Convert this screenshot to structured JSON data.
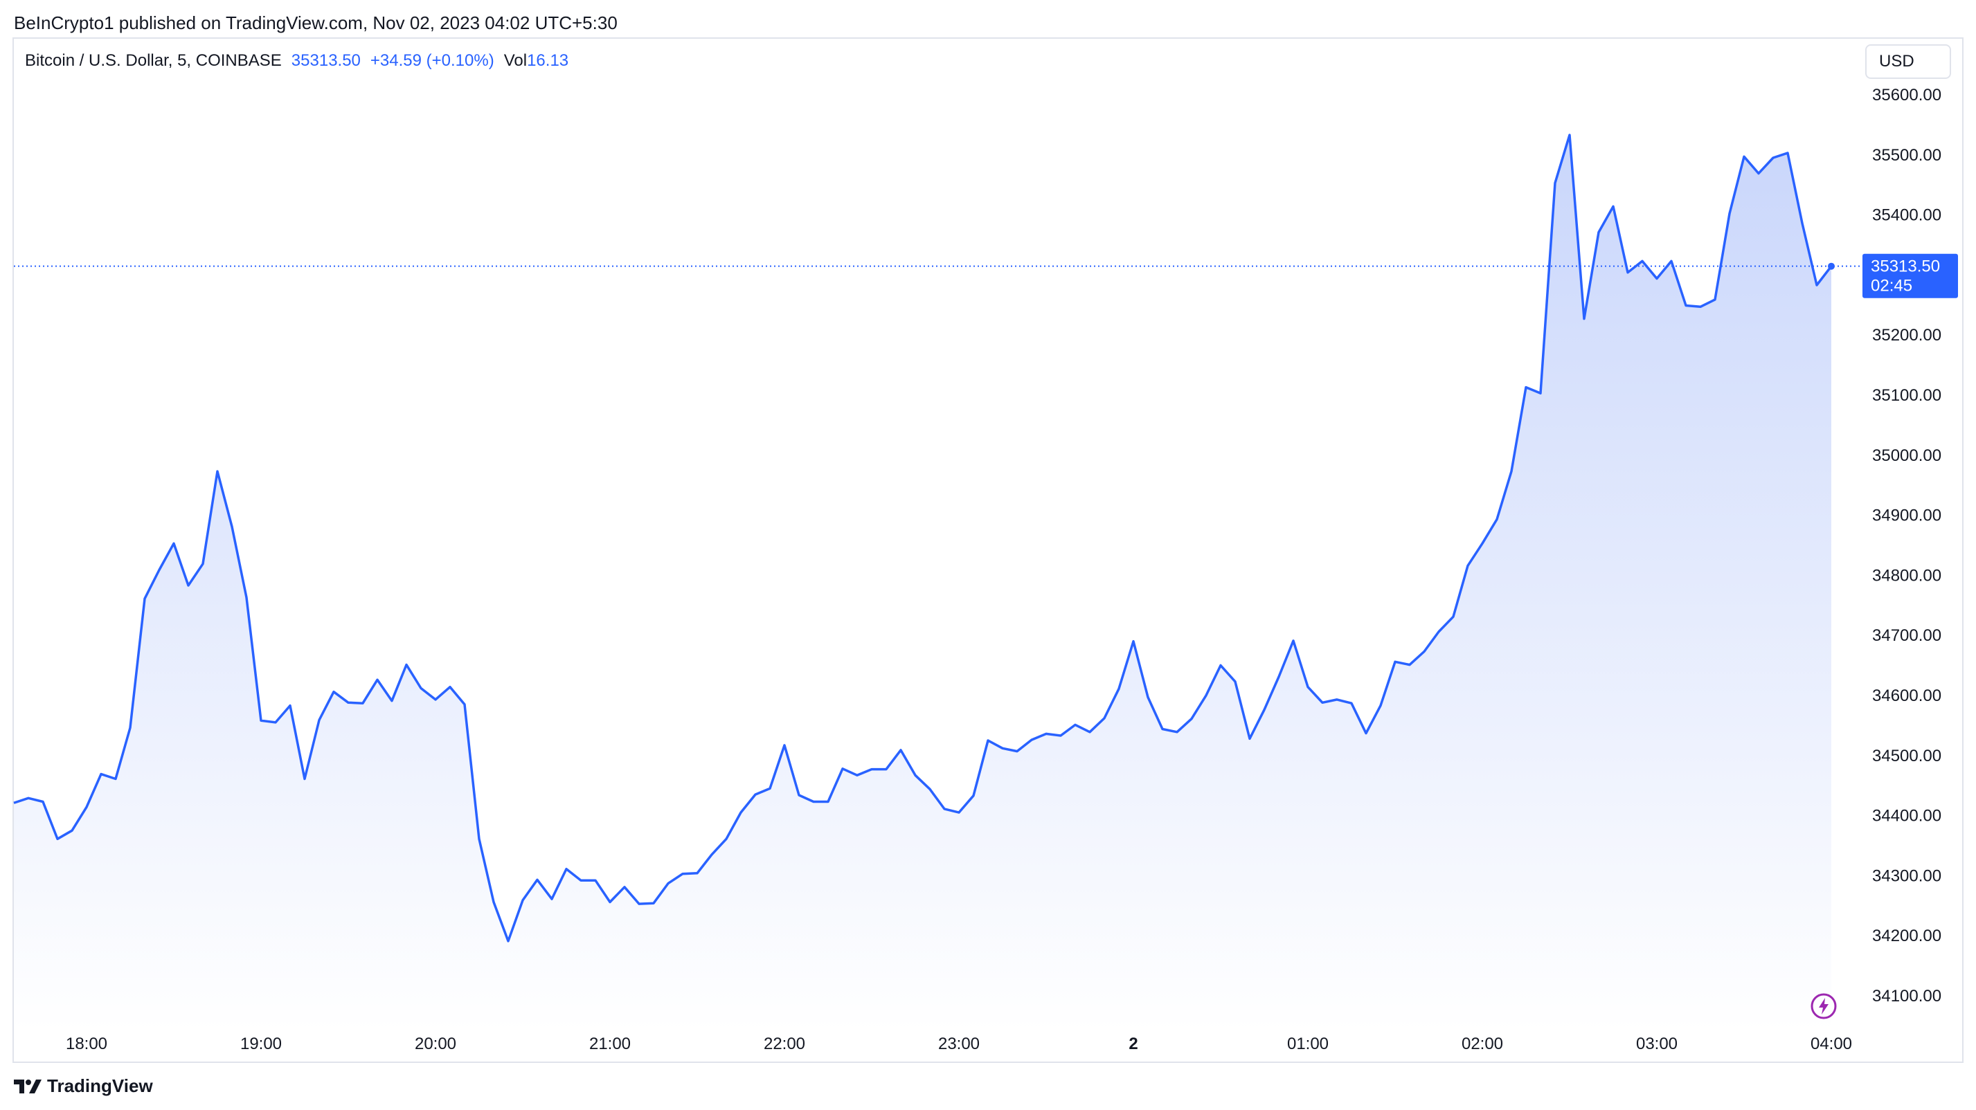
{
  "header": {
    "published_line": "BeInCrypto1 published on TradingView.com, Nov 02, 2023 04:02 UTC+5:30"
  },
  "legend": {
    "symbol": "Bitcoin / U.S. Dollar, 5, COINBASE",
    "price": "35313.50",
    "change": "+34.59 (+0.10%)",
    "volume_label": "Vol",
    "volume_value": "16.13"
  },
  "currency_button": {
    "label": "USD"
  },
  "price_tag": {
    "price": "35313.50",
    "countdown": "02:45"
  },
  "footer": {
    "brand": "TradingView"
  },
  "colors": {
    "line": "#2962ff",
    "fill_top": "#c9d6fb",
    "fill_bottom": "#ffffff",
    "price_tag": "#2962ff",
    "bolt": "#9c27b0"
  },
  "icons": {
    "logo": "tradingview-logo-icon",
    "bolt": "lightning-bolt-icon"
  },
  "chart_data": {
    "type": "area",
    "title": "",
    "xlabel": "",
    "ylabel": "",
    "grid": false,
    "y_axis_position": "right",
    "ylim": [
      34040,
      35640
    ],
    "y_ticks": [
      34100,
      34200,
      34300,
      34400,
      34500,
      34600,
      34700,
      34800,
      34900,
      35000,
      35100,
      35200,
      35300,
      35400,
      35500,
      35600
    ],
    "y_tick_labels": [
      "34100.00",
      "34200.00",
      "34300.00",
      "34400.00",
      "34500.00",
      "34600.00",
      "34700.00",
      "34800.00",
      "34900.00",
      "35000.00",
      "35100.00",
      "35200.00",
      "35300.00",
      "35400.00",
      "35500.00",
      "35600.00"
    ],
    "x_tick_labels": [
      {
        "label": "18:00",
        "bar_index": 5,
        "bold": false
      },
      {
        "label": "19:00",
        "bar_index": 17,
        "bold": false
      },
      {
        "label": "20:00",
        "bar_index": 29,
        "bold": false
      },
      {
        "label": "21:00",
        "bar_index": 41,
        "bold": false
      },
      {
        "label": "22:00",
        "bar_index": 53,
        "bold": false
      },
      {
        "label": "23:00",
        "bar_index": 65,
        "bold": false
      },
      {
        "label": "2",
        "bar_index": 77,
        "bold": true
      },
      {
        "label": "01:00",
        "bar_index": 89,
        "bold": false
      },
      {
        "label": "02:00",
        "bar_index": 101,
        "bold": false
      },
      {
        "label": "03:00",
        "bar_index": 113,
        "bold": false
      },
      {
        "label": "04:00",
        "bar_index": 125,
        "bold": false
      }
    ],
    "last_price": 35313.5,
    "series": [
      {
        "values": [
          34420,
          34428,
          34422,
          34360,
          34374,
          34413,
          34468,
          34460,
          34545,
          34760,
          34808,
          34852,
          34782,
          34818,
          34972,
          34880,
          34762,
          34557,
          34554,
          34582,
          34460,
          34558,
          34605,
          34587,
          34586,
          34625,
          34590,
          34650,
          34611,
          34592,
          34613,
          34584,
          34360,
          34255,
          34190,
          34258,
          34292,
          34260,
          34310,
          34291,
          34291,
          34255,
          34280,
          34252,
          34253,
          34286,
          34302,
          34303,
          34334,
          34360,
          34404,
          34434,
          34444,
          34516,
          34433,
          34422,
          34422,
          34477,
          34466,
          34476,
          34476,
          34508,
          34466,
          34443,
          34410,
          34404,
          34432,
          34524,
          34511,
          34506,
          34525,
          34535,
          34532,
          34550,
          34538,
          34561,
          34610,
          34689,
          34596,
          34543,
          34538,
          34560,
          34599,
          34649,
          34622,
          34527,
          34575,
          34630,
          34690,
          34613,
          34587,
          34592,
          34586,
          34536,
          34582,
          34655,
          34650,
          34672,
          34705,
          34730,
          34815,
          34852,
          34892,
          34972,
          35112,
          35102,
          35452,
          35532,
          35226,
          35370,
          35413,
          35303,
          35322,
          35293,
          35322,
          35248,
          35246,
          35258,
          35401,
          35496,
          35468,
          35494,
          35502,
          35385,
          35282,
          35313.5
        ]
      }
    ]
  }
}
